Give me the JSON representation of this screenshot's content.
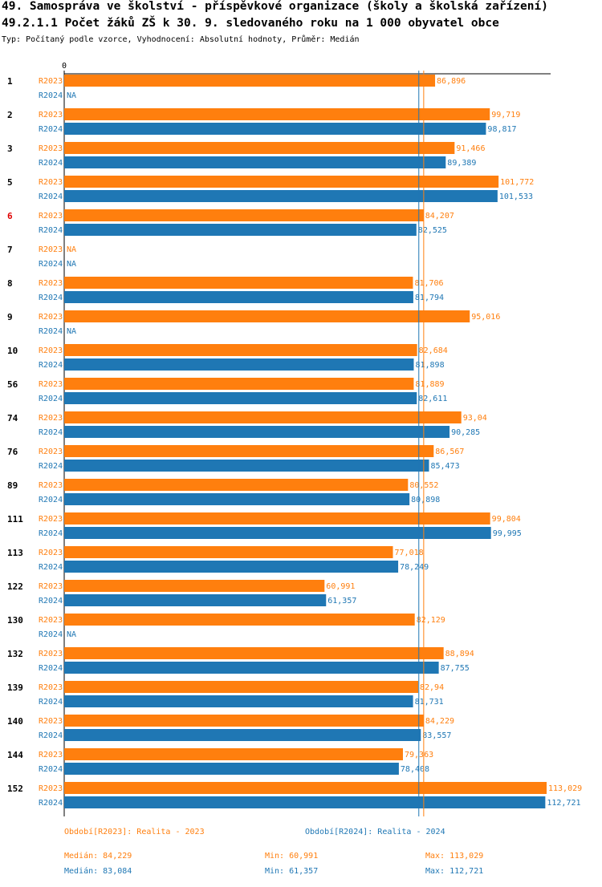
{
  "header": {
    "title": "49. Samospráva ve školství - příspěvkové organizace (školy a školská zařízení)",
    "subtitle": "49.2.1.1 Počet žáků ZŠ k 30. 9. sledovaného roku  na 1 000 obyvatel obce",
    "info": "Typ: Počítaný podle vzorce, Vyhodnocení: Absolutní hodnoty, Průměr: Medián"
  },
  "colors": {
    "R2023": "#ff7f0e",
    "R2024": "#1f77b4",
    "highlight_label": "#e00000"
  },
  "chart_data": {
    "type": "bar",
    "orientation": "horizontal",
    "x_tick_label": "0",
    "xlim": [
      0,
      113.029
    ],
    "na_label": "NA",
    "highlight_category": "6",
    "categories": [
      "1",
      "2",
      "3",
      "5",
      "6",
      "7",
      "8",
      "9",
      "10",
      "56",
      "74",
      "76",
      "89",
      "111",
      "113",
      "122",
      "130",
      "132",
      "139",
      "140",
      "144",
      "152"
    ],
    "series": [
      {
        "name": "R2023",
        "values": [
          86.896,
          99.719,
          91.466,
          101.772,
          84.207,
          null,
          81.706,
          95.016,
          82.684,
          81.889,
          93.04,
          86.567,
          80.552,
          99.804,
          77.018,
          60.991,
          82.129,
          88.894,
          82.94,
          84.229,
          79.363,
          113.029
        ],
        "labels": [
          "86,896",
          "99,719",
          "91,466",
          "101,772",
          "84,207",
          "NA",
          "81,706",
          "95,016",
          "82,684",
          "81,889",
          "93,04",
          "86,567",
          "80,552",
          "99,804",
          "77,018",
          "60,991",
          "82,129",
          "88,894",
          "82,94",
          "84,229",
          "79,363",
          "113,029"
        ]
      },
      {
        "name": "R2024",
        "values": [
          null,
          98.817,
          89.389,
          101.533,
          82.525,
          null,
          81.794,
          null,
          81.898,
          82.611,
          90.285,
          85.473,
          80.898,
          99.995,
          78.249,
          61.357,
          null,
          87.755,
          81.731,
          83.557,
          78.408,
          112.721
        ],
        "labels": [
          "NA",
          "98,817",
          "89,389",
          "101,533",
          "82,525",
          "NA",
          "81,794",
          "NA",
          "81,898",
          "82,611",
          "90,285",
          "85,473",
          "80,898",
          "99,995",
          "78,249",
          "61,357",
          "NA",
          "87,755",
          "81,731",
          "83,557",
          "78,408",
          "112,721"
        ]
      }
    ],
    "median_lines": [
      {
        "series": "R2023",
        "value": 84.229
      },
      {
        "series": "R2024",
        "value": 83.084
      }
    ]
  },
  "legend": {
    "r2023_label": "Období[R2023]: Realita - 2023",
    "r2024_label": "Období[R2024]: Realita - 2024",
    "r2023_median": "Medián: 84,229",
    "r2023_min": "Min: 60,991",
    "r2023_max": "Max: 113,029",
    "r2024_median": "Medián: 83,084",
    "r2024_min": "Min: 61,357",
    "r2024_max": "Max: 112,721"
  }
}
